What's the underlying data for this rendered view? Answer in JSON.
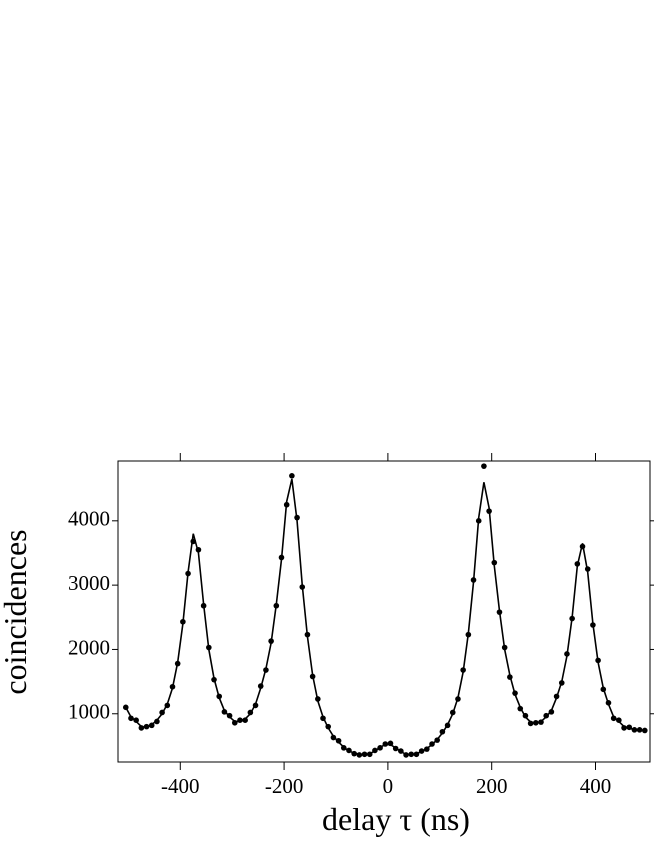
{
  "chart_data": {
    "type": "scatter_fit",
    "xlabel": "delay τ (ns)",
    "ylabel": "coincidences",
    "x": [
      -505,
      -495,
      -485,
      -475,
      -465,
      -455,
      -445,
      -435,
      -425,
      -415,
      -405,
      -395,
      -385,
      -375,
      -365,
      -355,
      -345,
      -335,
      -325,
      -315,
      -305,
      -295,
      -285,
      -275,
      -265,
      -255,
      -245,
      -235,
      -225,
      -215,
      -205,
      -195,
      -185,
      -175,
      -165,
      -155,
      -145,
      -135,
      -125,
      -115,
      -105,
      -95,
      -85,
      -75,
      -65,
      -55,
      -45,
      -35,
      -25,
      -15,
      -5,
      5,
      15,
      25,
      35,
      45,
      55,
      65,
      75,
      85,
      95,
      105,
      115,
      125,
      135,
      145,
      155,
      165,
      175,
      185,
      195,
      205,
      215,
      225,
      235,
      245,
      255,
      265,
      275,
      285,
      295,
      305,
      315,
      325,
      335,
      345,
      355,
      365,
      375,
      385,
      395,
      405,
      415,
      425,
      435,
      445,
      455,
      465,
      475,
      485,
      495
    ],
    "series": [
      {
        "kind": "points",
        "color": "#000000",
        "values": [
          1100,
          930,
          900,
          780,
          800,
          820,
          880,
          1020,
          1130,
          1420,
          1780,
          2430,
          3180,
          3680,
          3550,
          2680,
          2030,
          1530,
          1270,
          1030,
          970,
          860,
          900,
          900,
          1020,
          1130,
          1430,
          1680,
          2130,
          2680,
          3430,
          4250,
          4700,
          4050,
          2970,
          2230,
          1580,
          1230,
          930,
          800,
          630,
          580,
          470,
          430,
          380,
          360,
          370,
          370,
          430,
          470,
          530,
          540,
          460,
          420,
          360,
          370,
          370,
          420,
          450,
          530,
          590,
          720,
          820,
          1020,
          1230,
          1680,
          2230,
          3080,
          4000,
          4850,
          4150,
          3350,
          2580,
          2030,
          1570,
          1320,
          1080,
          970,
          850,
          860,
          870,
          970,
          1030,
          1270,
          1480,
          1930,
          2480,
          3330,
          3600,
          3250,
          2380,
          1830,
          1380,
          1170,
          930,
          900,
          780,
          790,
          750,
          750,
          740
        ]
      },
      {
        "kind": "line",
        "color": "#000000",
        "values": [
          1100,
          950,
          880,
          800,
          790,
          830,
          900,
          1000,
          1150,
          1400,
          1800,
          2400,
          3200,
          3800,
          3500,
          2700,
          2000,
          1550,
          1250,
          1050,
          950,
          880,
          880,
          920,
          1000,
          1150,
          1400,
          1700,
          2100,
          2700,
          3400,
          4300,
          4650,
          4000,
          3000,
          2200,
          1600,
          1200,
          950,
          780,
          650,
          560,
          480,
          420,
          390,
          370,
          360,
          380,
          420,
          480,
          520,
          520,
          470,
          410,
          370,
          360,
          380,
          410,
          460,
          520,
          600,
          700,
          830,
          1000,
          1250,
          1650,
          2250,
          3050,
          4050,
          4600,
          4200,
          3300,
          2600,
          2000,
          1600,
          1300,
          1100,
          950,
          870,
          850,
          880,
          950,
          1050,
          1250,
          1500,
          1900,
          2500,
          3300,
          3650,
          3200,
          2400,
          1800,
          1400,
          1150,
          950,
          880,
          800,
          770,
          760,
          740,
          740
        ]
      }
    ],
    "xlim": [
      -520,
      505
    ],
    "ylim": [
      250,
      4930
    ],
    "xticks": [
      -400,
      -200,
      0,
      200,
      400
    ],
    "yticks": [
      1000,
      2000,
      3000,
      4000
    ]
  }
}
